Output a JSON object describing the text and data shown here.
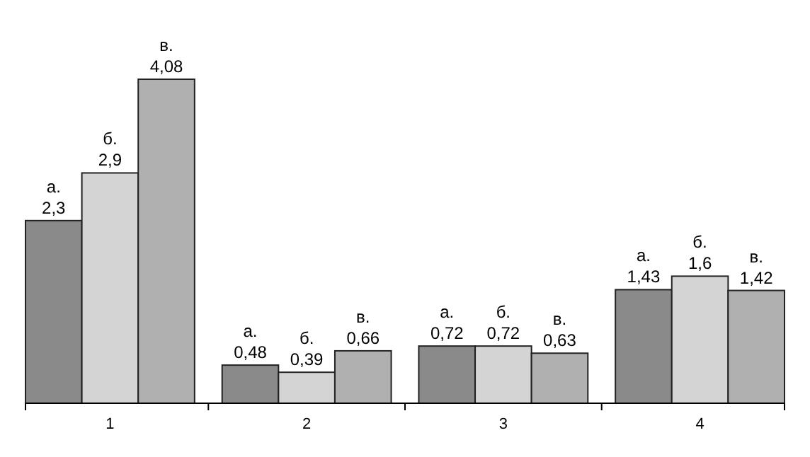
{
  "chart_data": {
    "type": "bar",
    "categories": [
      "1",
      "2",
      "3",
      "4"
    ],
    "series": [
      {
        "name": "а.",
        "color": "#8a8a8a",
        "values": [
          2.3,
          0.48,
          0.72,
          1.43
        ],
        "value_labels": [
          "2,3",
          "0,48",
          "0,72",
          "1,43"
        ]
      },
      {
        "name": "б.",
        "color": "#d4d4d4",
        "values": [
          2.9,
          0.39,
          0.72,
          1.6
        ],
        "value_labels": [
          "2,9",
          "0,39",
          "0,72",
          "1,6"
        ]
      },
      {
        "name": "в.",
        "color": "#b0b0b0",
        "values": [
          4.08,
          0.66,
          0.63,
          1.42
        ],
        "value_labels": [
          "4,08",
          "0,66",
          "0,63",
          "1,42"
        ]
      }
    ]
  }
}
